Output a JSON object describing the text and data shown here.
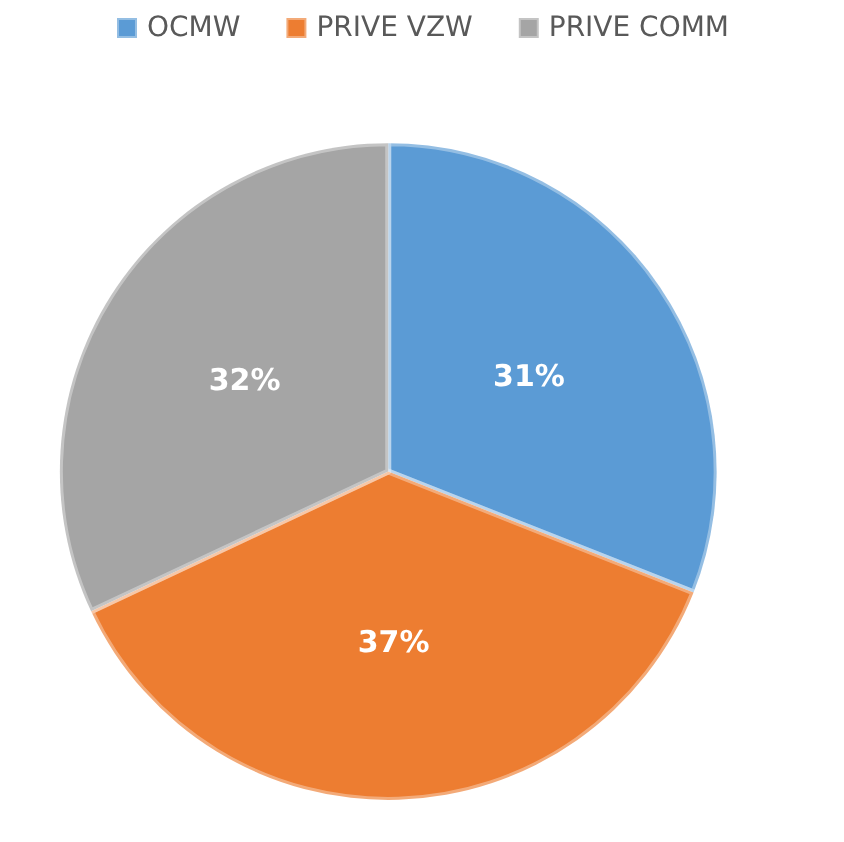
{
  "chart_data": {
    "type": "pie",
    "categories": [
      "OCMW",
      "PRIVE VZW",
      "PRIVE COMM"
    ],
    "values": [
      31,
      37,
      32
    ],
    "colors": [
      "#5b9bd5",
      "#ed7d31",
      "#a5a5a5"
    ],
    "value_labels": [
      "31%",
      "37%",
      "32%"
    ],
    "legend": "top"
  }
}
